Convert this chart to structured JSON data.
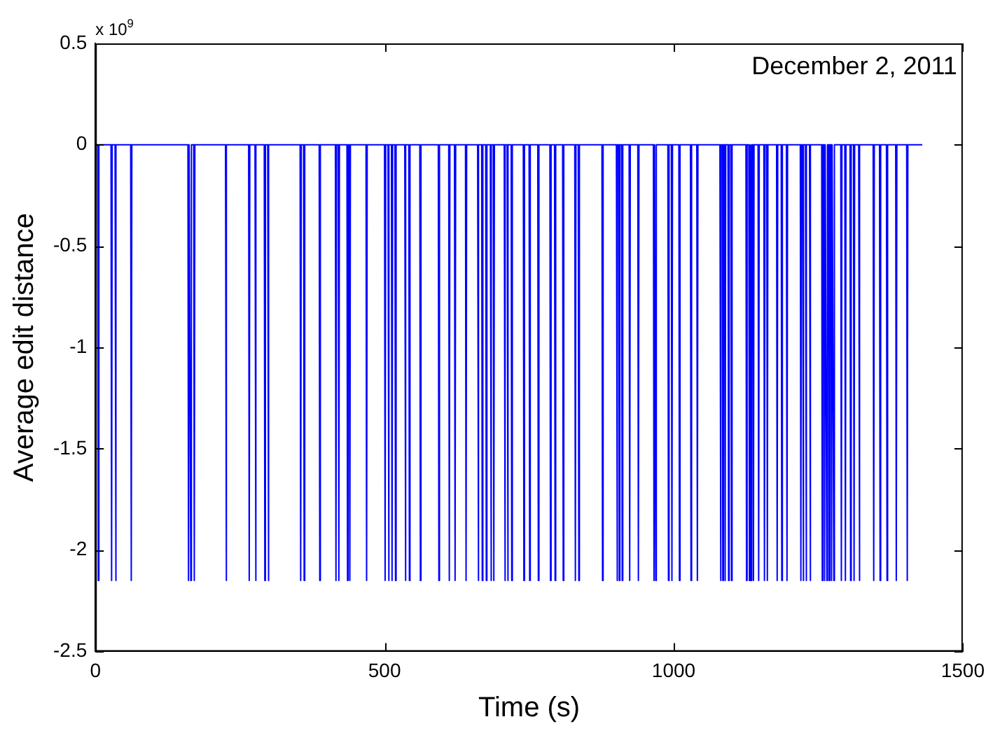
{
  "chart_data": {
    "type": "line",
    "xlabel": "Time (s)",
    "ylabel": "Average edit distance",
    "annotations": [
      "x 10$^{9}$",
      "December 2, 2011"
    ],
    "xlim": [
      0,
      1500
    ],
    "xticks": [
      0,
      500,
      1000,
      1500
    ],
    "ylim": [
      -2.5,
      0.5
    ],
    "yticks": [
      -2.5,
      -2,
      -1.5,
      -1,
      -0.5,
      0,
      0.5
    ],
    "grid": false,
    "legend": false,
    "marker": "none",
    "line_style": "solid",
    "x": [
      0,
      4,
      5,
      6,
      27,
      28,
      29,
      34,
      35,
      36,
      61,
      62,
      63,
      160,
      161,
      162,
      164,
      165,
      166,
      170,
      171,
      172,
      225,
      226,
      227,
      265,
      266,
      267,
      276,
      277,
      278,
      292,
      293,
      294,
      298,
      299,
      300,
      354,
      355,
      356,
      360,
      361,
      362,
      387,
      388,
      389,
      415,
      416,
      417,
      420,
      421,
      422,
      435,
      436,
      437,
      439,
      440,
      441,
      468,
      469,
      470,
      500,
      501,
      502,
      506,
      507,
      508,
      512,
      513,
      514,
      518,
      519,
      520,
      535,
      536,
      537,
      542,
      543,
      544,
      561,
      562,
      563,
      593,
      594,
      595,
      611,
      612,
      613,
      621,
      622,
      623,
      640,
      641,
      642,
      661,
      662,
      663,
      668,
      669,
      670,
      675,
      676,
      677,
      683,
      684,
      685,
      688,
      689,
      690,
      707,
      708,
      709,
      712,
      713,
      714,
      719,
      720,
      721,
      740,
      741,
      742,
      750,
      751,
      752,
      765,
      766,
      767,
      786,
      787,
      788,
      794,
      795,
      796,
      808,
      809,
      810,
      829,
      830,
      831,
      835,
      836,
      837,
      876,
      877,
      878,
      901,
      902,
      903,
      905,
      906,
      907,
      910,
      911,
      912,
      923,
      924,
      925,
      938,
      939,
      940,
      965,
      966,
      967,
      968,
      969,
      970,
      990,
      991,
      992,
      996,
      997,
      998,
      1009,
      1010,
      1011,
      1029,
      1030,
      1031,
      1040,
      1041,
      1042,
      1080,
      1081,
      1082,
      1084,
      1085,
      1086,
      1088,
      1089,
      1090,
      1094,
      1095,
      1096,
      1099,
      1100,
      1101,
      1125,
      1126,
      1127,
      1130,
      1131,
      1132,
      1133,
      1134,
      1135,
      1137,
      1138,
      1139,
      1146,
      1147,
      1148,
      1156,
      1157,
      1158,
      1161,
      1162,
      1163,
      1178,
      1179,
      1180,
      1186,
      1187,
      1188,
      1195,
      1196,
      1197,
      1219,
      1220,
      1221,
      1223,
      1224,
      1225,
      1228,
      1229,
      1230,
      1235,
      1236,
      1237,
      1256,
      1257,
      1258,
      1260,
      1261,
      1262,
      1264,
      1265,
      1266,
      1268,
      1269,
      1270,
      1272,
      1273,
      1274,
      1276,
      1277,
      1278,
      1289,
      1290,
      1291,
      1296,
      1297,
      1298,
      1305,
      1306,
      1307,
      1311,
      1312,
      1313,
      1320,
      1321,
      1322,
      1345,
      1346,
      1347,
      1356,
      1357,
      1358,
      1368,
      1369,
      1370,
      1384,
      1385,
      1386,
      1403,
      1404,
      1405,
      1430
    ],
    "series": [
      {
        "color": "#0000ff",
        "values": [
          0,
          0,
          -2.15,
          0,
          0,
          -2.15,
          0,
          0,
          -2.15,
          0,
          0,
          -2.15,
          0,
          0,
          -2.15,
          0,
          0,
          -2.15,
          0,
          0,
          -2.15,
          0,
          0,
          -2.15,
          0,
          0,
          -2.15,
          0,
          0,
          -2.15,
          0,
          0,
          -2.15,
          0,
          0,
          -2.15,
          0,
          0,
          -2.15,
          0,
          0,
          -2.15,
          0,
          0,
          -2.15,
          0,
          0,
          -2.15,
          0,
          0,
          -2.15,
          0,
          0,
          -2.15,
          0,
          0,
          -2.15,
          0,
          0,
          -2.15,
          0,
          0,
          -2.15,
          0,
          0,
          -2.15,
          0,
          0,
          -2.15,
          0,
          0,
          -2.15,
          0,
          0,
          -2.15,
          0,
          0,
          -2.15,
          0,
          0,
          -2.15,
          0,
          0,
          -2.15,
          0,
          0,
          -2.15,
          0,
          0,
          -2.15,
          0,
          0,
          -2.15,
          0,
          0,
          -2.15,
          0,
          0,
          -2.15,
          0,
          0,
          -2.15,
          0,
          0,
          -2.15,
          0,
          0,
          -2.15,
          0,
          0,
          -2.15,
          0,
          0,
          -2.15,
          0,
          0,
          -2.15,
          0,
          0,
          -2.15,
          0,
          0,
          -2.15,
          0,
          0,
          -2.15,
          0,
          0,
          -2.15,
          0,
          0,
          -2.15,
          0,
          0,
          -2.15,
          0,
          0,
          -2.15,
          0,
          0,
          -2.15,
          0,
          0,
          -2.15,
          0,
          0,
          -2.15,
          0,
          0,
          -2.15,
          0,
          0,
          -2.15,
          0,
          0,
          -2.15,
          0,
          0,
          -2.15,
          0,
          0,
          -2.15,
          0,
          0,
          -2.15,
          0,
          0,
          -2.15,
          0,
          0,
          -2.15,
          0,
          0,
          -2.15,
          0,
          0,
          -2.15,
          0,
          0,
          -2.15,
          0,
          0,
          -2.15,
          0,
          0,
          -2.15,
          0,
          0,
          -2.15,
          0,
          0,
          -2.15,
          0,
          0,
          -2.15,
          0,
          0,
          -2.15,
          0,
          0,
          -2.15,
          0,
          0,
          -2.15,
          0,
          0,
          -2.15,
          0,
          0,
          -2.15,
          0,
          0,
          -2.15,
          0,
          0,
          -2.15,
          0,
          0,
          -2.15,
          0,
          0,
          -2.15,
          0,
          0,
          -2.15,
          0,
          0,
          -2.15,
          0,
          0,
          -2.15,
          0,
          0,
          -2.15,
          0,
          0,
          -2.15,
          0,
          0,
          -2.15,
          0,
          0,
          -2.15,
          0,
          0,
          -2.15,
          0,
          0,
          -2.15,
          0,
          0,
          -2.15,
          0,
          0,
          -2.15,
          0,
          0,
          -2.15,
          0,
          0,
          -2.15,
          0,
          0,
          -2.15,
          0,
          0,
          -2.15,
          0,
          0,
          -2.15,
          0,
          0,
          -2.15,
          0,
          0,
          -2.15,
          0,
          0,
          -2.15,
          0,
          0,
          -2.15,
          0,
          0,
          -2.15,
          0,
          0
        ]
      }
    ]
  }
}
